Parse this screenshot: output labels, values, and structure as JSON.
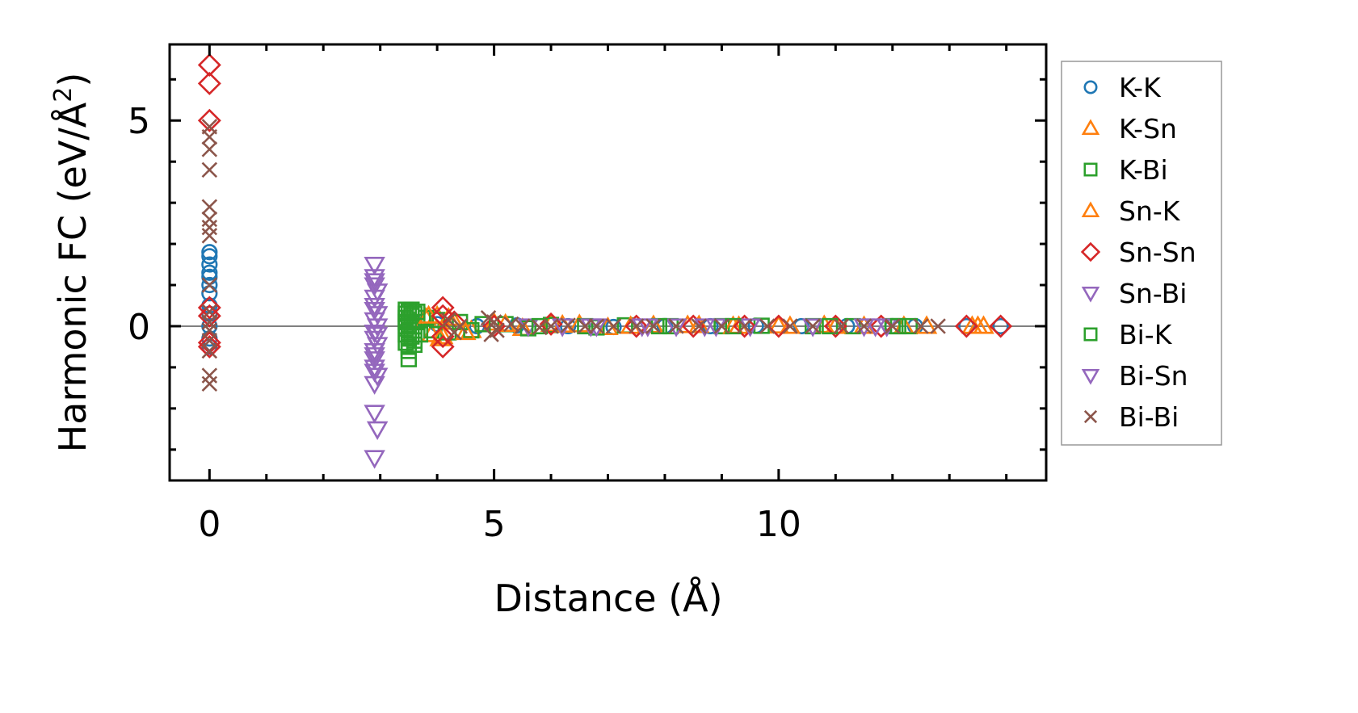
{
  "chart_data": {
    "type": "scatter",
    "title": "",
    "xlabel": "Distance (Å)",
    "ylabel_main": "Harmonic FC (eV/Å",
    "ylabel_sup": "2",
    "ylabel_end": ")",
    "xlim": [
      -0.7,
      14.7
    ],
    "ylim": [
      -3.75,
      6.85
    ],
    "xticks": [
      {
        "value": 0,
        "label": "0"
      },
      {
        "value": 5,
        "label": "5"
      },
      {
        "value": 10,
        "label": "10"
      }
    ],
    "yticks": [
      {
        "value": 0,
        "label": "0"
      },
      {
        "value": 5,
        "label": "5"
      }
    ],
    "minor_step": 1,
    "zero_line": true,
    "legend_position": "outside-right",
    "series": [
      {
        "name": "K-K",
        "marker": "circle",
        "color": "#1f77b4",
        "x": [
          0,
          0,
          0,
          0,
          0,
          0,
          0,
          0,
          0,
          0,
          0,
          0,
          3.6,
          4.0,
          4.7,
          5.4,
          6.3,
          7.1,
          8.0,
          8.8,
          9.6,
          10.4,
          11.2,
          12.0,
          12.4,
          13.3,
          13.9
        ],
        "y": [
          1.8,
          1.7,
          1.5,
          1.3,
          1.2,
          1.0,
          0.8,
          0.5,
          0.3,
          0.0,
          -0.3,
          -0.5,
          0.1,
          0.05,
          0.0,
          0.02,
          0.0,
          -0.02,
          0.0,
          0.0,
          0.01,
          0.0,
          0.0,
          0.0,
          0.0,
          0.0,
          0.0
        ]
      },
      {
        "name": "K-Sn",
        "marker": "triangle-up",
        "color": "#ff7f0e",
        "x": [
          3.8,
          3.9,
          4.0,
          4.1,
          4.3,
          4.6,
          5.0,
          5.5,
          6.0,
          6.5,
          7.0,
          7.8,
          8.6,
          9.3,
          10.0,
          10.8,
          11.5,
          12.2,
          13.4,
          13.6
        ],
        "y": [
          0.2,
          -0.2,
          0.25,
          -0.25,
          0.1,
          -0.1,
          0.08,
          -0.05,
          0.05,
          0.04,
          -0.03,
          0.02,
          0.02,
          0.0,
          0.01,
          0.02,
          0.0,
          0.0,
          0.0,
          0.0
        ]
      },
      {
        "name": "K-Bi",
        "marker": "square",
        "color": "#2ca02c",
        "x": [
          3.45,
          3.45,
          3.45,
          3.45,
          3.45,
          3.45,
          3.45,
          3.5,
          3.5,
          3.5,
          3.5,
          3.5,
          3.5,
          3.55,
          3.55,
          3.6,
          3.6,
          3.6,
          3.65,
          3.7,
          3.8,
          3.9,
          4.0,
          4.2,
          4.4,
          4.6,
          5.2,
          5.6,
          6.0,
          6.8,
          7.3,
          8.1,
          9.0,
          9.7,
          10.6,
          11.3,
          12.0,
          12.3
        ],
        "y": [
          0.4,
          0.3,
          0.2,
          0.1,
          0.0,
          -0.2,
          -0.4,
          0.35,
          0.15,
          -0.1,
          -0.3,
          -0.5,
          -0.8,
          0.25,
          -0.25,
          0.3,
          0.0,
          -0.35,
          0.1,
          -0.2,
          0.2,
          -0.1,
          0.15,
          -0.15,
          0.1,
          -0.1,
          0.05,
          -0.05,
          0.03,
          -0.03,
          0.02,
          0.0,
          0.0,
          0.01,
          0.0,
          0.0,
          0.0,
          0.0
        ]
      },
      {
        "name": "Sn-K",
        "marker": "triangle-up",
        "color": "#ff7f0e",
        "x": [
          3.85,
          4.05,
          4.2,
          4.5,
          5.2,
          6.2,
          7.4,
          8.4,
          9.2,
          10.2,
          11.0,
          12.6,
          13.5
        ],
        "y": [
          0.25,
          -0.3,
          0.2,
          -0.15,
          0.05,
          0.03,
          0.0,
          0.02,
          0.0,
          0.0,
          0.0,
          0.0,
          0.0
        ]
      },
      {
        "name": "Sn-Sn",
        "marker": "diamond",
        "color": "#d62728",
        "x": [
          0,
          0,
          0,
          0,
          0,
          0,
          0,
          4.1,
          4.1,
          4.1,
          4.1,
          4.3,
          5.0,
          6.0,
          7.5,
          8.5,
          9.4,
          10.0,
          11.0,
          11.8,
          13.3,
          13.9
        ],
        "y": [
          6.35,
          5.9,
          5.0,
          0.45,
          0.25,
          -0.4,
          -0.5,
          0.45,
          0.25,
          -0.25,
          -0.5,
          0.1,
          0.0,
          0.05,
          0.0,
          0.0,
          0.0,
          0.0,
          0.0,
          0.0,
          0.0,
          0.0
        ]
      },
      {
        "name": "Sn-Bi",
        "marker": "triangle-down",
        "color": "#9467bd",
        "x": [
          2.9,
          2.9,
          2.9,
          2.9,
          2.9,
          2.95,
          2.9,
          2.95,
          2.9,
          2.9,
          2.95,
          2.9,
          2.9,
          2.9,
          2.95,
          2.9,
          2.9,
          2.95,
          2.9,
          5.6,
          6.2,
          6.8,
          7.6,
          8.2,
          8.9,
          9.5,
          10.6,
          11.5,
          11.9
        ],
        "y": [
          1.5,
          1.2,
          1.0,
          0.7,
          0.5,
          0.3,
          0.15,
          0.0,
          -0.15,
          -0.3,
          -0.45,
          -0.6,
          -0.8,
          -1.0,
          -1.2,
          -1.4,
          -2.1,
          -2.5,
          -3.2,
          0.0,
          0.0,
          0.0,
          0.0,
          0.0,
          0.0,
          0.0,
          0.0,
          0.0,
          0.0
        ]
      },
      {
        "name": "Bi-K",
        "marker": "square",
        "color": "#2ca02c",
        "x": [
          3.5,
          3.55,
          3.6,
          3.65,
          4.8,
          5.8,
          6.6,
          7.9,
          9.2,
          10.9,
          12.1
        ],
        "y": [
          -0.6,
          0.4,
          -0.45,
          0.35,
          0.05,
          0.0,
          0.0,
          0.0,
          0.0,
          0.0,
          0.0
        ]
      },
      {
        "name": "Bi-Sn",
        "marker": "triangle-down",
        "color": "#9467bd",
        "x": [
          2.9,
          2.95,
          2.9,
          2.95,
          2.9,
          2.9,
          6.7,
          7.7,
          8.7,
          11.7
        ],
        "y": [
          1.1,
          0.85,
          0.4,
          -0.2,
          -0.7,
          -1.1,
          0.0,
          0.0,
          0.0,
          0.0
        ]
      },
      {
        "name": "Bi-Bi",
        "marker": "x",
        "color": "#8c564b",
        "x": [
          0,
          0,
          0,
          0,
          0,
          0,
          0,
          0,
          0,
          0,
          0,
          0,
          0,
          0,
          0,
          0,
          4.2,
          4.3,
          4.4,
          4.9,
          4.95,
          5.0,
          5.05,
          5.3,
          5.5,
          5.8,
          6.0,
          6.3,
          6.6,
          6.8,
          7.1,
          7.5,
          7.8,
          8.2,
          8.6,
          9.0,
          9.4,
          9.8,
          10.2,
          10.6,
          11.1,
          11.5,
          12.0,
          12.5,
          12.8
        ],
        "y": [
          4.85,
          4.6,
          4.3,
          3.8,
          2.9,
          2.6,
          2.4,
          2.2,
          1.0,
          0.35,
          0.1,
          -0.1,
          -0.35,
          -0.6,
          -1.2,
          -1.4,
          0.15,
          -0.15,
          0.0,
          0.2,
          -0.2,
          0.1,
          -0.1,
          0.05,
          0.0,
          -0.03,
          0.0,
          0.02,
          0.0,
          0.0,
          0.0,
          0.0,
          0.0,
          0.0,
          0.0,
          0.0,
          0.0,
          0.0,
          0.0,
          0.0,
          0.0,
          0.0,
          0.0,
          0.0,
          0.0
        ]
      }
    ]
  }
}
